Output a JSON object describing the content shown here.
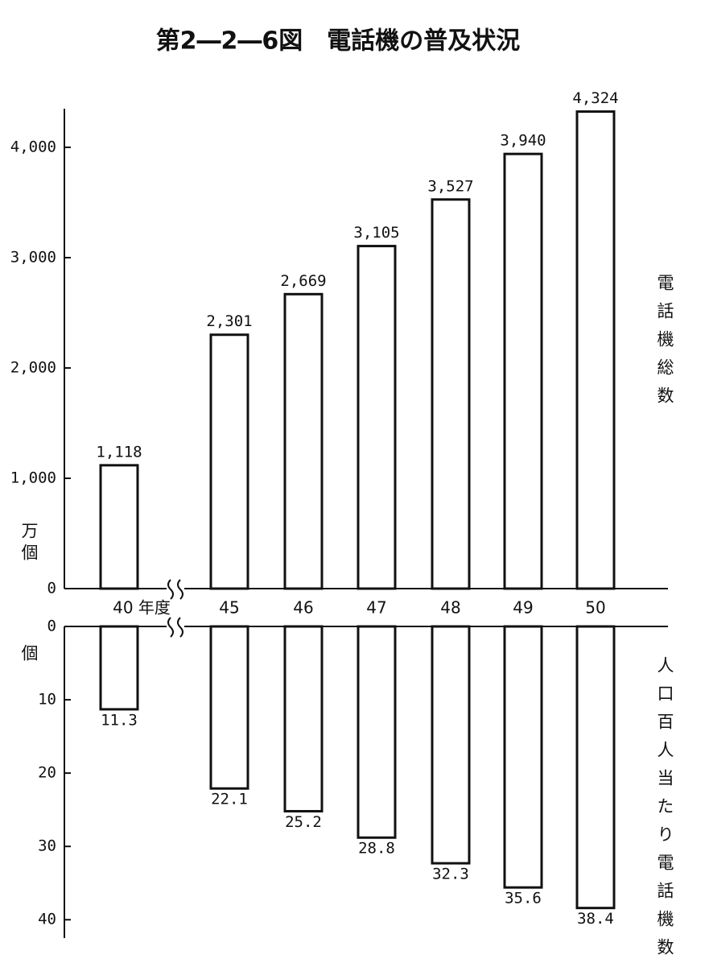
{
  "title": "第2―2―6図　電話機の普及状況",
  "chart_data": [
    {
      "type": "bar",
      "ylabel": "万個",
      "side_label": "電話機総数",
      "categories": [
        "40 年度",
        "45",
        "46",
        "47",
        "48",
        "49",
        "50"
      ],
      "values": [
        1118,
        2301,
        2669,
        3105,
        3527,
        3940,
        4324
      ],
      "value_labels": [
        "1,118",
        "2,301",
        "2,669",
        "3,105",
        "3,527",
        "3,940",
        "4,324"
      ],
      "ylim": [
        0,
        4350
      ],
      "yticks": [
        0,
        {
          "value": 1000,
          "label": "1,000"
        },
        {
          "value": 2000,
          "label": "2,000"
        },
        {
          "value": 3000,
          "label": "3,000"
        },
        {
          "value": 4000,
          "label": "4,000"
        }
      ],
      "color": "#ffffff"
    },
    {
      "type": "bar",
      "ylabel": "個",
      "side_label": "人口百人当たり電話機数",
      "direction": "down",
      "values": [
        11.3,
        22.1,
        25.2,
        28.8,
        32.3,
        35.6,
        38.4
      ],
      "ylim": [
        0,
        42.5
      ],
      "yticks": [
        0,
        10,
        20,
        30,
        40
      ],
      "color": "#ffffff"
    }
  ]
}
